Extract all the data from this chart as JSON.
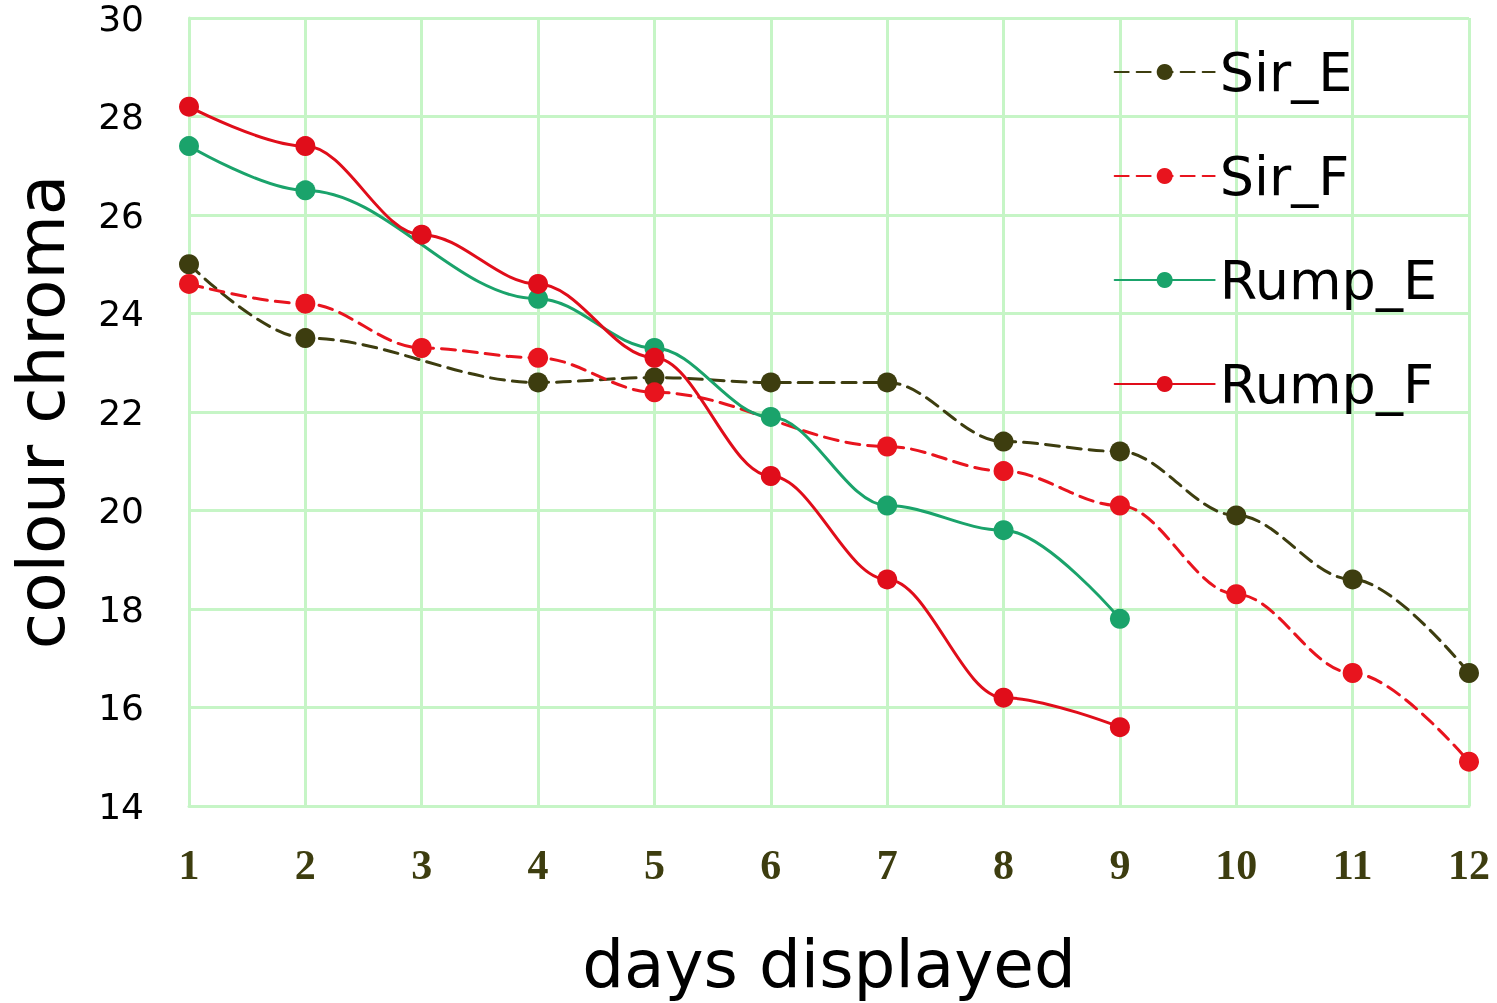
{
  "chart_data": {
    "type": "line",
    "xlabel": "days displayed",
    "ylabel": "colour chroma",
    "x": [
      1,
      2,
      3,
      4,
      5,
      6,
      7,
      8,
      9,
      10,
      11,
      12
    ],
    "series": [
      {
        "name": "Sir_E",
        "color": "#3d3d0f",
        "line_style": "dashed",
        "values": [
          25.0,
          23.5,
          null,
          22.6,
          22.7,
          22.6,
          22.6,
          21.4,
          21.2,
          19.9,
          18.6,
          16.7
        ]
      },
      {
        "name": "Sir_F",
        "color": "#e8141e",
        "line_style": "dashed",
        "values": [
          24.6,
          24.2,
          23.3,
          23.1,
          22.4,
          null,
          21.3,
          20.8,
          20.1,
          18.3,
          16.7,
          14.9
        ]
      },
      {
        "name": "Rump_E",
        "color": "#1aa36b",
        "line_style": "solid",
        "values": [
          27.4,
          26.5,
          null,
          24.3,
          23.3,
          21.9,
          20.1,
          19.6,
          17.8,
          null,
          null,
          null
        ]
      },
      {
        "name": "Rump_F",
        "color": "#e00d1a",
        "line_style": "solid",
        "values": [
          28.2,
          27.4,
          25.6,
          24.6,
          23.1,
          20.7,
          18.6,
          16.2,
          15.6,
          null,
          null,
          null
        ]
      }
    ],
    "xlim": [
      1,
      12
    ],
    "xticks": [
      1,
      2,
      3,
      4,
      5,
      6,
      7,
      8,
      9,
      10,
      11,
      12
    ],
    "ylim": [
      14,
      30
    ],
    "yticks": [
      14,
      16,
      18,
      20,
      22,
      24,
      26,
      28,
      30
    ],
    "grid": true,
    "legend": "top right",
    "marker": "circle"
  }
}
